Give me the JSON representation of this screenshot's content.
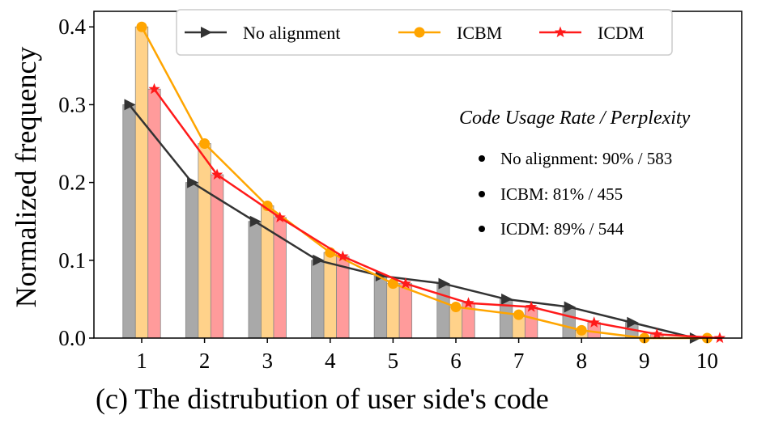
{
  "chart_data": {
    "type": "bar",
    "title": "",
    "xlabel": "",
    "ylabel": "Normalized frequency",
    "ylim": [
      0,
      0.42
    ],
    "yticks": [
      "0.0",
      "0.1",
      "0.2",
      "0.3",
      "0.4"
    ],
    "categories": [
      "1",
      "2",
      "3",
      "4",
      "5",
      "6",
      "7",
      "8",
      "9",
      "10"
    ],
    "series": [
      {
        "name": "No alignment",
        "color": "#333333",
        "bar_color": "#a9a9a9",
        "marker": "triangle-right",
        "values": [
          0.3,
          0.2,
          0.15,
          0.1,
          0.08,
          0.07,
          0.05,
          0.04,
          0.02,
          0.0
        ]
      },
      {
        "name": "ICBM",
        "color": "#ffa500",
        "bar_color": "#ffd28a",
        "marker": "circle",
        "values": [
          0.4,
          0.25,
          0.17,
          0.11,
          0.07,
          0.04,
          0.03,
          0.01,
          0.0,
          0.0
        ]
      },
      {
        "name": "ICDM",
        "color": "#ff1a1a",
        "bar_color": "#ff9b9b",
        "marker": "star",
        "values": [
          0.32,
          0.21,
          0.155,
          0.105,
          0.07,
          0.045,
          0.04,
          0.02,
          0.005,
          0.0
        ]
      }
    ],
    "legend_position": "top",
    "annotation": {
      "title": "Code Usage Rate / Perplexity",
      "items": [
        "No alignment: 90% / 583",
        "ICBM: 81% / 455",
        "ICDM: 89% / 544"
      ]
    },
    "caption": "(c) The distrubution of user side's code"
  }
}
